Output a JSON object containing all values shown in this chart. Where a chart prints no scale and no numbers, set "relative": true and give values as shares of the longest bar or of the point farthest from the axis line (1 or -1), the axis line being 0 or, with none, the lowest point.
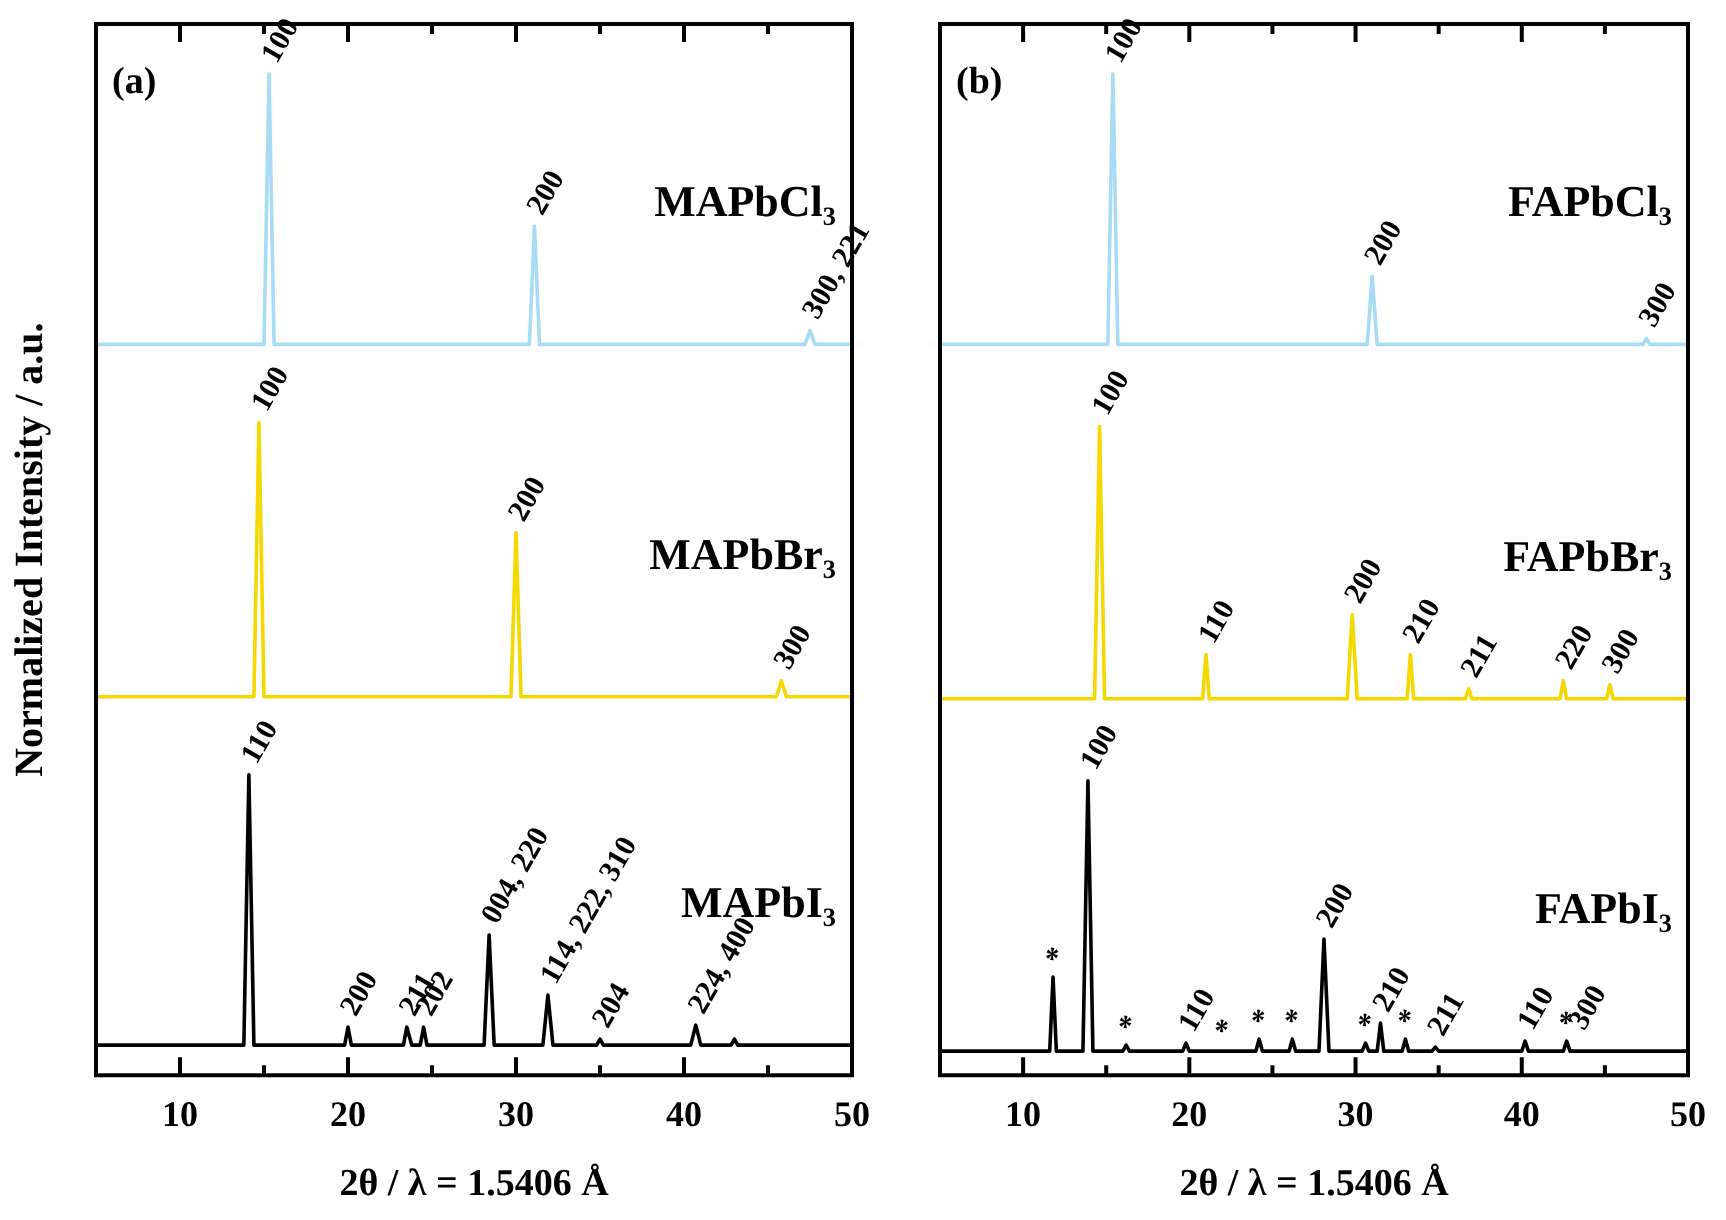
{
  "chart_data": [
    {
      "type": "line",
      "title": "(a)",
      "xlabel": "2θ / λ = 1.5406 Å",
      "ylabel": "Normalized Intensity / a.u.",
      "relative": true,
      "marker": "none",
      "grid": false,
      "legend": false,
      "xlim": [
        5,
        50
      ],
      "xticks": [
        10,
        {
          "value": 15,
          "label": null
        },
        20,
        {
          "value": 25,
          "label": null
        },
        30,
        {
          "value": 35,
          "label": null
        },
        40,
        {
          "value": 45,
          "label": null
        },
        50
      ],
      "series": [
        {
          "name": "MAPbCl₃",
          "color": "#a8dcf5",
          "x": [
            5,
            15.0,
            15.3,
            15.6,
            30.8,
            31.1,
            31.4,
            47.2,
            47.5,
            47.8,
            50
          ],
          "values": [
            0.73,
            0.73,
            1.0,
            0.73,
            0.73,
            0.848,
            0.73,
            0.73,
            0.744,
            0.73,
            0.73
          ]
        },
        {
          "name": "MAPbBr₃",
          "color": "#f5d800",
          "x": [
            5,
            14.4,
            14.7,
            15,
            29.7,
            30,
            30.3,
            45.5,
            45.8,
            46.1,
            50
          ],
          "values": [
            0.378,
            0.378,
            0.652,
            0.378,
            0.378,
            0.542,
            0.378,
            0.378,
            0.394,
            0.378,
            0.378
          ]
        },
        {
          "name": "MAPbI₃",
          "color": "#000000",
          "x": [
            5,
            13.8,
            14.1,
            14.4,
            19.8,
            20,
            20.2,
            23.3,
            23.5,
            23.8,
            24.3,
            24.5,
            24.7,
            28.1,
            28.4,
            28.7,
            31.6,
            31.9,
            32.2,
            34.8,
            35,
            35.2,
            40.4,
            40.7,
            41,
            42.8,
            43,
            43.2,
            50
          ],
          "values": [
            0.03,
            0.03,
            0.3,
            0.03,
            0.03,
            0.048,
            0.03,
            0.03,
            0.048,
            0.03,
            0.03,
            0.048,
            0.03,
            0.03,
            0.14,
            0.03,
            0.03,
            0.08,
            0.03,
            0.03,
            0.036,
            0.03,
            0.03,
            0.05,
            0.03,
            0.03,
            0.036,
            0.03,
            0.03
          ]
        }
      ],
      "annotations": [
        {
          "text": "100",
          "x": 15.3,
          "y": 1.0
        },
        {
          "text": "200",
          "x": 31.1,
          "y": 0.848
        },
        {
          "text": "300, 221",
          "x": 47.5,
          "y": 0.744
        },
        {
          "text": "100",
          "x": 14.7,
          "y": 0.652
        },
        {
          "text": "200",
          "x": 30,
          "y": 0.542
        },
        {
          "text": "300",
          "x": 45.8,
          "y": 0.394
        },
        {
          "text": "110",
          "x": 14.1,
          "y": 0.3
        },
        {
          "text": "200",
          "x": 20,
          "y": 0.048
        },
        {
          "text": "211",
          "x": 23.5,
          "y": 0.048
        },
        {
          "text": "202",
          "x": 24.5,
          "y": 0.048
        },
        {
          "text": "004, 220",
          "x": 28.4,
          "y": 0.14
        },
        {
          "text": "114, 222, 310",
          "x": 31.9,
          "y": 0.08
        },
        {
          "text": "204",
          "x": 35,
          "y": 0.036
        },
        {
          "text": "224, 400",
          "x": 40.7,
          "y": 0.05
        }
      ]
    },
    {
      "type": "line",
      "title": "(b)",
      "xlabel": "2θ / λ = 1.5406 Å",
      "relative": true,
      "marker": "none",
      "grid": false,
      "legend": false,
      "xlim": [
        5,
        50
      ],
      "xticks": [
        10,
        {
          "value": 15,
          "label": null
        },
        20,
        {
          "value": 25,
          "label": null
        },
        30,
        {
          "value": 35,
          "label": null
        },
        40,
        {
          "value": 45,
          "label": null
        },
        50
      ],
      "series": [
        {
          "name": "FAPbCl₃",
          "color": "#a8dcf5",
          "x": [
            5,
            15.1,
            15.4,
            15.7,
            30.7,
            31,
            31.3,
            47.3,
            47.5,
            47.7,
            50
          ],
          "values": [
            0.73,
            0.73,
            1.0,
            0.73,
            0.73,
            0.798,
            0.73,
            0.73,
            0.736,
            0.73,
            0.73
          ]
        },
        {
          "name": "FAPbBr₃",
          "color": "#f5d800",
          "x": [
            5,
            14.3,
            14.6,
            14.9,
            20.8,
            21,
            21.2,
            29.5,
            29.8,
            30.1,
            33.1,
            33.3,
            33.5,
            36.6,
            36.8,
            37,
            42.3,
            42.5,
            42.7,
            45.1,
            45.3,
            45.5,
            50
          ],
          "values": [
            0.376,
            0.376,
            0.648,
            0.376,
            0.376,
            0.42,
            0.376,
            0.376,
            0.46,
            0.376,
            0.376,
            0.42,
            0.376,
            0.376,
            0.386,
            0.376,
            0.376,
            0.394,
            0.376,
            0.376,
            0.39,
            0.376,
            0.376
          ]
        },
        {
          "name": "FAPbI₃",
          "color": "#000000",
          "x": [
            5,
            11.6,
            11.8,
            12,
            13.6,
            13.9,
            14.2,
            16,
            16.2,
            16.4,
            19.6,
            19.8,
            20,
            24,
            24.2,
            24.4,
            26,
            26.2,
            26.4,
            27.8,
            28.1,
            28.4,
            30.4,
            30.6,
            30.8,
            31.3,
            31.5,
            31.7,
            32.8,
            33,
            33.2,
            34.6,
            34.8,
            35,
            40,
            40.2,
            40.4,
            42.5,
            42.7,
            42.9,
            50
          ],
          "values": [
            0.024,
            0.024,
            0.098,
            0.024,
            0.024,
            0.294,
            0.024,
            0.024,
            0.03,
            0.024,
            0.024,
            0.032,
            0.024,
            0.024,
            0.036,
            0.024,
            0.024,
            0.036,
            0.024,
            0.024,
            0.136,
            0.024,
            0.024,
            0.032,
            0.024,
            0.024,
            0.052,
            0.024,
            0.024,
            0.036,
            0.024,
            0.024,
            0.028,
            0.024,
            0.024,
            0.034,
            0.024,
            0.024,
            0.034,
            0.024,
            0.024
          ]
        }
      ],
      "annotations": [
        {
          "text": "100",
          "x": 15.4,
          "y": 1.0
        },
        {
          "text": "200",
          "x": 31,
          "y": 0.798
        },
        {
          "text": "300",
          "x": 47.5,
          "y": 0.736
        },
        {
          "text": "100",
          "x": 14.6,
          "y": 0.648
        },
        {
          "text": "110",
          "x": 21,
          "y": 0.42
        },
        {
          "text": "200",
          "x": 29.8,
          "y": 0.46
        },
        {
          "text": "210",
          "x": 33.3,
          "y": 0.42
        },
        {
          "text": "211",
          "x": 36.8,
          "y": 0.386
        },
        {
          "text": "220",
          "x": 42.5,
          "y": 0.394
        },
        {
          "text": "300",
          "x": 45.3,
          "y": 0.39
        },
        {
          "text": "*",
          "x": 11.8,
          "y": 0.098
        },
        {
          "text": "100",
          "x": 13.9,
          "y": 0.294
        },
        {
          "text": "*",
          "x": 16.2,
          "y": 0.03
        },
        {
          "text": "110",
          "x": 19.8,
          "y": 0.032
        },
        {
          "text": "*",
          "x": 22,
          "y": 0.026
        },
        {
          "text": "*",
          "x": 24.2,
          "y": 0.036
        },
        {
          "text": "*",
          "x": 26.2,
          "y": 0.036
        },
        {
          "text": "200",
          "x": 28.1,
          "y": 0.136
        },
        {
          "text": "*",
          "x": 30.6,
          "y": 0.032
        },
        {
          "text": "210",
          "x": 31.5,
          "y": 0.052
        },
        {
          "text": "*",
          "x": 33,
          "y": 0.036
        },
        {
          "text": "211",
          "x": 34.8,
          "y": 0.028
        },
        {
          "text": "110",
          "x": 40.2,
          "y": 0.034
        },
        {
          "text": "*",
          "x": 42.7,
          "y": 0.034
        },
        {
          "text": "300",
          "x": 43.3,
          "y": 0.034
        }
      ]
    }
  ]
}
